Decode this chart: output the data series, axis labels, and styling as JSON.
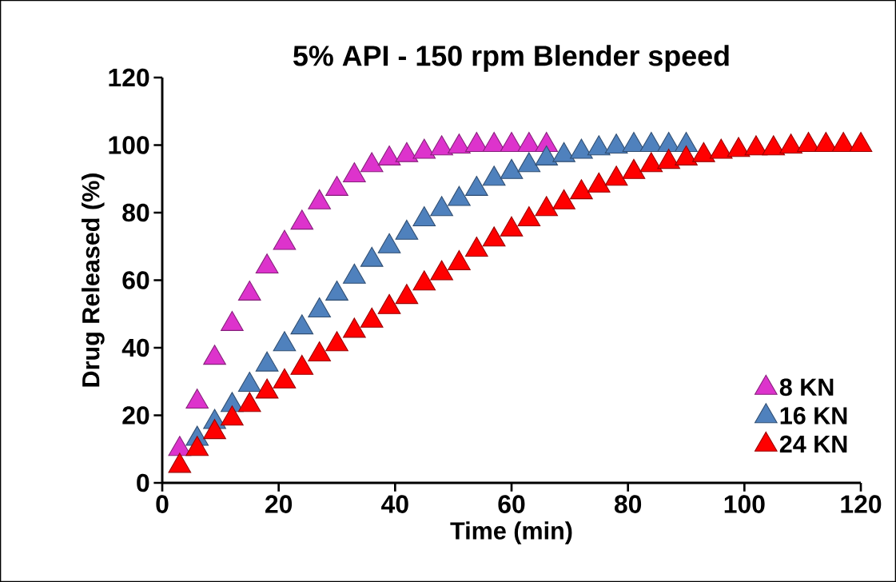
{
  "chart_data": {
    "type": "scatter",
    "title": "5% API - 150 rpm Blender speed",
    "xlabel": "Time (min)",
    "ylabel": "Drug Released (%)",
    "x": [
      3,
      6,
      9,
      12,
      15,
      18,
      21,
      24,
      27,
      30,
      33,
      36,
      39,
      42,
      45,
      48,
      51,
      54,
      57,
      60,
      63,
      66,
      69,
      72,
      75,
      78,
      81,
      84,
      87,
      90,
      93,
      96,
      99,
      102,
      105,
      108,
      111,
      114,
      117,
      120
    ],
    "series": [
      {
        "name": "8 KN",
        "color": "#dd33cc",
        "values": [
          10,
          24,
          37,
          47,
          56,
          64,
          71,
          77,
          83,
          87,
          91,
          94,
          96,
          97,
          98,
          99,
          99.5,
          100,
          100,
          100,
          100,
          100,
          null,
          null,
          null,
          null,
          null,
          null,
          null,
          null,
          null,
          null,
          null,
          null,
          null,
          null,
          null,
          null,
          null,
          null
        ]
      },
      {
        "name": "16 KN",
        "color": "#4f81bd",
        "values": [
          null,
          13,
          18,
          23,
          29,
          35,
          41,
          46,
          51,
          56,
          61,
          66,
          70,
          74,
          78,
          81,
          84,
          87,
          90,
          92,
          94,
          96,
          97,
          98,
          99,
          99.5,
          100,
          100,
          100,
          100,
          null,
          null,
          null,
          null,
          null,
          null,
          null,
          null,
          null,
          null
        ]
      },
      {
        "name": "24 KN",
        "color": "#ff0000",
        "values": [
          5,
          10,
          15,
          19,
          23,
          27,
          30,
          34,
          38,
          41,
          45,
          48,
          52,
          55,
          59,
          62,
          65,
          69,
          72,
          75,
          78,
          81,
          83,
          86,
          88,
          90,
          92,
          94,
          95,
          96,
          97,
          98,
          98.5,
          99,
          99,
          99.5,
          100,
          100,
          100,
          100
        ]
      }
    ],
    "marker": "triangle",
    "legend": "bottom right",
    "xlim": [
      0,
      120
    ],
    "ylim": [
      0,
      120
    ],
    "xticks": [
      0,
      20,
      40,
      60,
      80,
      100,
      120
    ],
    "yticks": [
      0,
      20,
      40,
      60,
      80,
      100,
      120
    ]
  }
}
